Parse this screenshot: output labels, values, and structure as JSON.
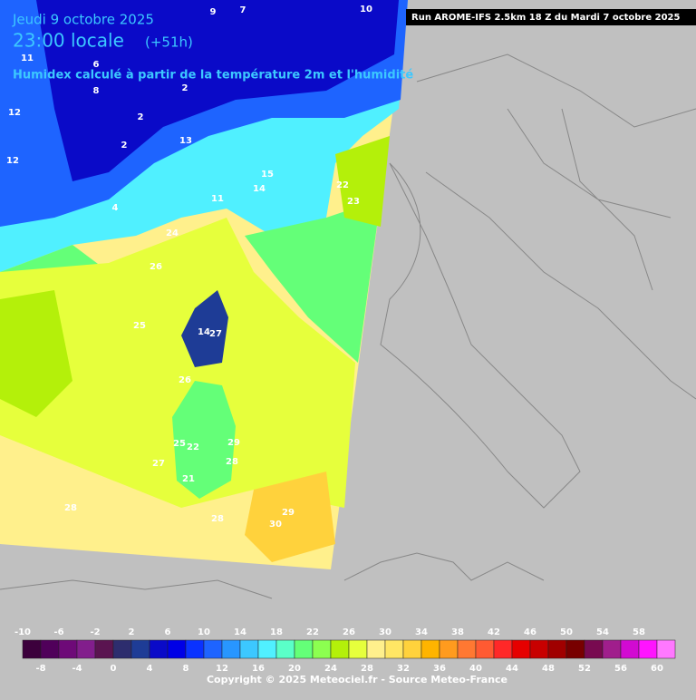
{
  "header": {
    "date": "Jeudi 9 octobre 2025",
    "time": "23:00 locale",
    "lead": "(+51h)",
    "subtitle": "Humidex calculé à partir de la température 2m et l'humidité",
    "run": "Run AROME-IFS 2.5km 18 Z du Mardi 7 octobre 2025"
  },
  "map": {
    "labels": [
      10,
      9,
      7,
      6,
      11,
      12,
      8,
      2,
      2,
      13,
      15,
      11,
      14,
      22,
      23,
      24,
      26,
      25,
      14,
      27,
      26,
      25,
      22,
      29,
      28,
      27,
      21,
      28,
      28,
      30,
      29,
      12,
      4,
      2
    ]
  },
  "legend": {
    "top": [
      -10,
      -6,
      -2,
      2,
      6,
      10,
      14,
      18,
      22,
      26,
      30,
      34,
      38,
      42,
      46,
      50,
      54,
      58
    ],
    "bottom": [
      -8,
      -4,
      0,
      4,
      8,
      12,
      16,
      20,
      24,
      28,
      32,
      36,
      40,
      44,
      48,
      52,
      56,
      60
    ],
    "colors": [
      "#3c003c",
      "#50005a",
      "#6e0a78",
      "#821e8c",
      "#5a1450",
      "#2d2d6e",
      "#1e3c96",
      "#0a0ac8",
      "#0000e6",
      "#0a32ff",
      "#1e64ff",
      "#2896ff",
      "#3cc8ff",
      "#50f0ff",
      "#5affc8",
      "#64ff78",
      "#8cff50",
      "#b4f00a",
      "#e6ff3c",
      "#fff08c",
      "#ffe664",
      "#ffd23c",
      "#ffb400",
      "#ff9b1e",
      "#ff7832",
      "#ff5a32",
      "#ff2828",
      "#e60000",
      "#c80000",
      "#a00000",
      "#780000",
      "#780a50",
      "#a01e8c",
      "#d20ad2",
      "#ff14ff",
      "#ff78ff"
    ]
  },
  "footer": {
    "copyright": "Copyright © 2025 Meteociel.fr - Source Meteo-France"
  }
}
